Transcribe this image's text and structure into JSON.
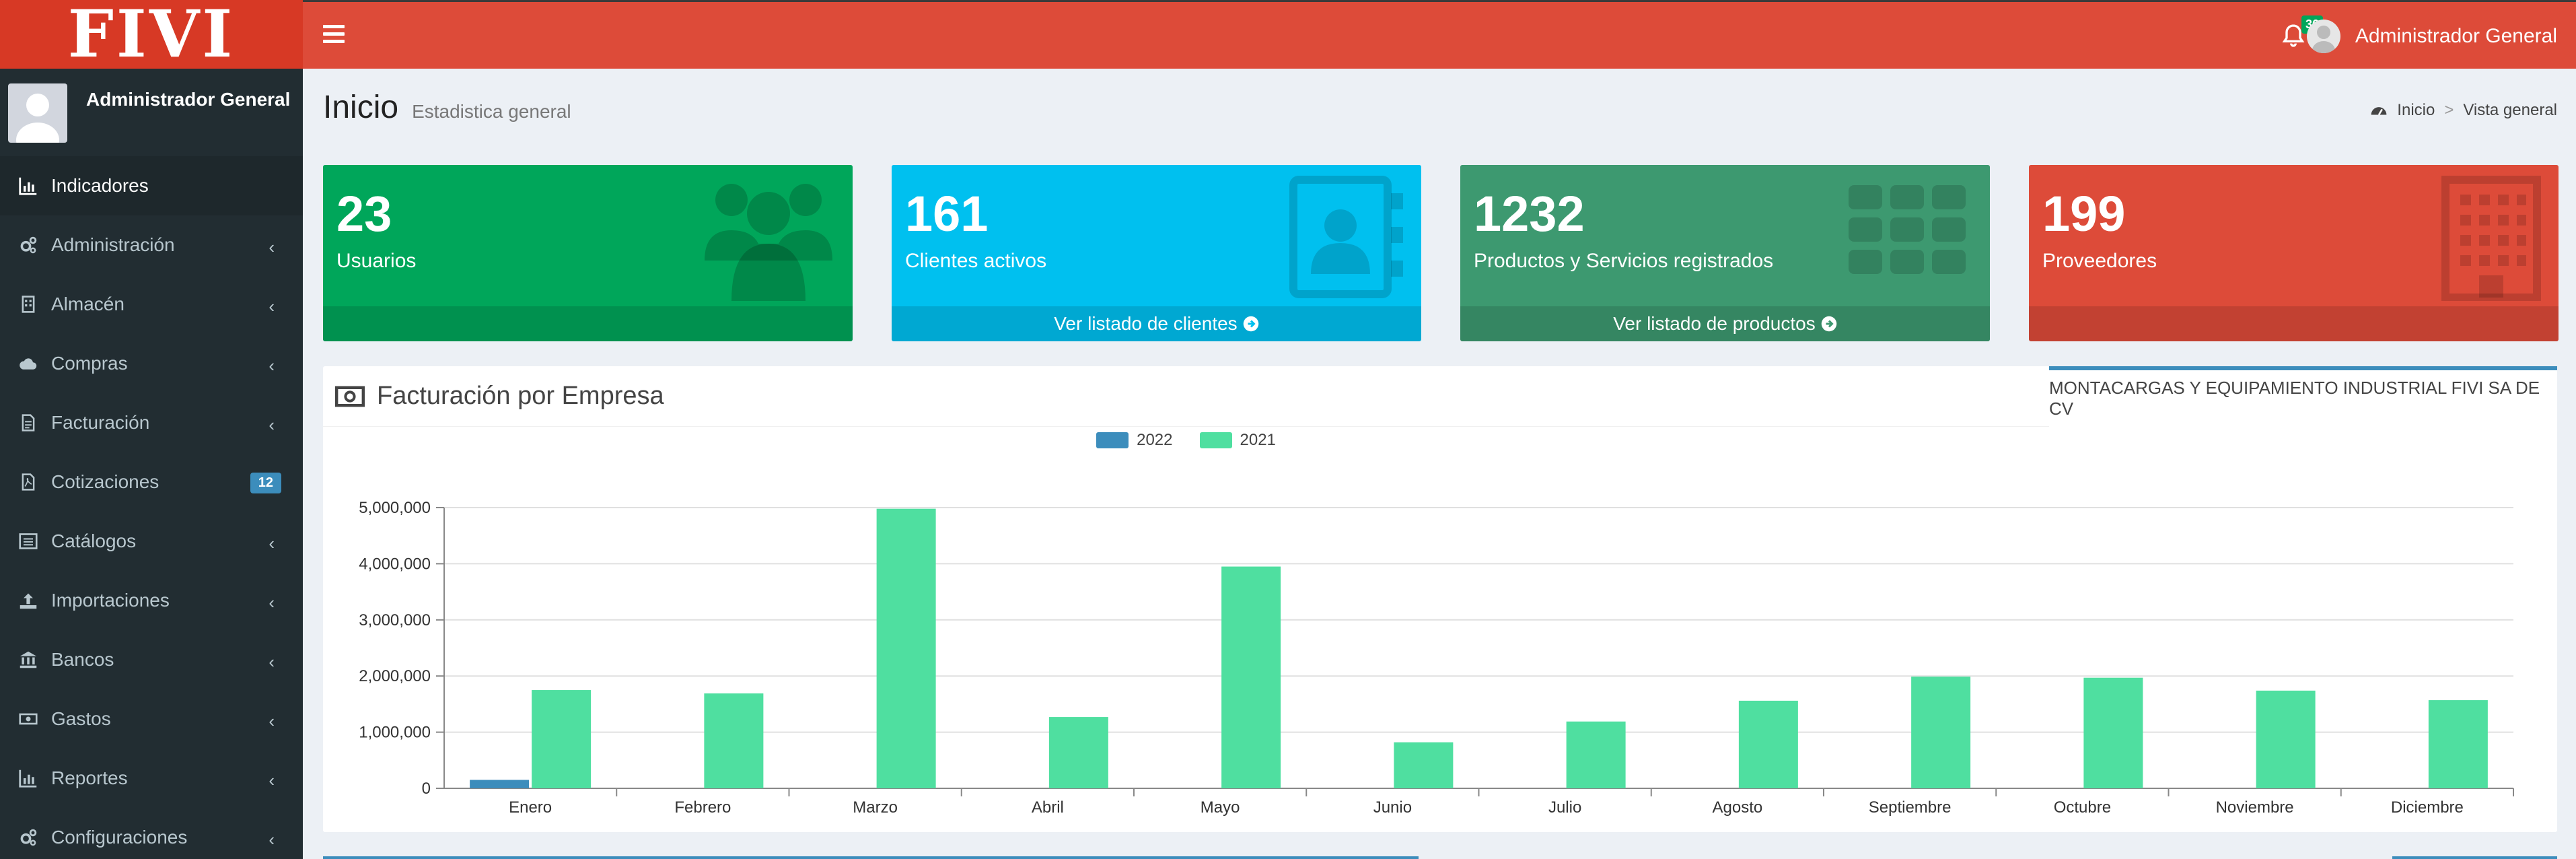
{
  "brand": {
    "logo": "FIVI"
  },
  "header": {
    "notifications_count": "36",
    "user_name": "Administrador General"
  },
  "sidebar": {
    "user_name": "Administrador General",
    "items": [
      {
        "label": "Indicadores",
        "icon": "bar-chart-icon",
        "active": true
      },
      {
        "label": "Administración",
        "icon": "gears-icon"
      },
      {
        "label": "Almacén",
        "icon": "building-icon"
      },
      {
        "label": "Compras",
        "icon": "cloud-icon"
      },
      {
        "label": "Facturación",
        "icon": "file-text-icon"
      },
      {
        "label": "Cotizaciones",
        "icon": "file-pdf-icon",
        "count": "12"
      },
      {
        "label": "Catálogos",
        "icon": "list-alt-icon"
      },
      {
        "label": "Importaciones",
        "icon": "upload-icon"
      },
      {
        "label": "Bancos",
        "icon": "bank-icon"
      },
      {
        "label": "Gastos",
        "icon": "money-icon"
      },
      {
        "label": "Reportes",
        "icon": "bar-chart-icon"
      },
      {
        "label": "Configuraciones",
        "icon": "gears-icon"
      }
    ]
  },
  "content": {
    "title": "Inicio",
    "subtitle": "Estadistica general",
    "breadcrumb": {
      "home": "Inicio",
      "current": "Vista general"
    }
  },
  "stats": [
    {
      "value": "23",
      "label": "Usuarios",
      "footer": "",
      "color": "#00a65a",
      "icon": "users-icon"
    },
    {
      "value": "161",
      "label": "Clientes activos",
      "footer": "Ver listado de clientes",
      "color": "#00c0ef",
      "icon": "address-book-icon"
    },
    {
      "value": "1232",
      "label": "Productos y Servicios registrados",
      "footer": "Ver listado de productos",
      "color": "#3d9970",
      "icon": "th-icon"
    },
    {
      "value": "199",
      "label": "Proveedores",
      "footer": "",
      "color": "#dd4b39",
      "icon": "building-icon"
    }
  ],
  "chart_panel": {
    "title": "Facturación por Empresa",
    "tab": "MONTACARGAS Y EQUIPAMIENTO INDUSTRIAL FIVI SA DE CV"
  },
  "chart_data": {
    "type": "bar",
    "categories": [
      "Enero",
      "Febrero",
      "Marzo",
      "Abril",
      "Mayo",
      "Junio",
      "Julio",
      "Agosto",
      "Septiembre",
      "Octubre",
      "Noviembre",
      "Diciembre"
    ],
    "series": [
      {
        "name": "2022",
        "color": "#3c8dbc",
        "values": [
          150000,
          0,
          0,
          0,
          0,
          0,
          0,
          0,
          0,
          0,
          0,
          0
        ]
      },
      {
        "name": "2021",
        "color": "#4fdfa0",
        "values": [
          1750000,
          1690000,
          4980000,
          1270000,
          3950000,
          820000,
          1190000,
          1560000,
          1990000,
          1970000,
          1740000,
          1570000
        ]
      }
    ],
    "ylim": [
      0,
      5000000
    ],
    "yticks": [
      "0",
      "1,000,000",
      "2,000,000",
      "3,000,000",
      "4,000,000",
      "5,000,000"
    ],
    "ytick_values": [
      0,
      1000000,
      2000000,
      3000000,
      4000000,
      5000000
    ],
    "grid": true,
    "legend": "top-center",
    "xlabel": "",
    "ylabel": "",
    "title": ""
  }
}
